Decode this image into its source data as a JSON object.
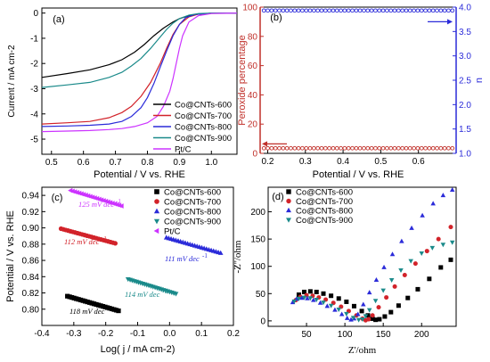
{
  "chart_data": [
    {
      "panel": "(a)",
      "type": "line",
      "xlabel": "Potential / V vs. RHE",
      "ylabel": "Current / mA cm-2",
      "xlim": [
        0.47,
        1.08
      ],
      "ylim": [
        -5.6,
        0.2
      ],
      "xticks": [
        0.5,
        0.6,
        0.7,
        0.8,
        0.9,
        1.0
      ],
      "yticks": [
        0,
        -1,
        -2,
        -3,
        -4,
        -5
      ],
      "legend_position": "bottom-right",
      "series": [
        {
          "name": "Co@CNTs-600",
          "color": "#000000",
          "x": [
            0.47,
            0.55,
            0.62,
            0.68,
            0.72,
            0.76,
            0.79,
            0.82,
            0.85,
            0.88,
            0.9,
            0.93,
            0.96,
            1.0,
            1.05,
            1.08
          ],
          "y": [
            -2.55,
            -2.4,
            -2.25,
            -2.05,
            -1.85,
            -1.55,
            -1.25,
            -0.9,
            -0.6,
            -0.35,
            -0.22,
            -0.1,
            -0.04,
            -0.01,
            0,
            0
          ]
        },
        {
          "name": "Co@CNTs-700",
          "color": "#d2232a",
          "x": [
            0.47,
            0.55,
            0.62,
            0.68,
            0.72,
            0.75,
            0.78,
            0.81,
            0.84,
            0.86,
            0.88,
            0.9,
            0.93,
            0.96,
            1.0,
            1.08
          ],
          "y": [
            -4.4,
            -4.35,
            -4.3,
            -4.15,
            -3.95,
            -3.7,
            -3.3,
            -2.75,
            -2.0,
            -1.4,
            -0.85,
            -0.45,
            -0.15,
            -0.04,
            -0.01,
            0
          ]
        },
        {
          "name": "Co@CNTs-800",
          "color": "#2b2bd9",
          "x": [
            0.47,
            0.55,
            0.62,
            0.68,
            0.72,
            0.75,
            0.78,
            0.8,
            0.82,
            0.84,
            0.86,
            0.88,
            0.9,
            0.92,
            0.95,
            1.0,
            1.08
          ],
          "y": [
            -4.5,
            -4.48,
            -4.45,
            -4.4,
            -4.3,
            -4.1,
            -3.75,
            -3.35,
            -2.8,
            -2.15,
            -1.5,
            -0.9,
            -0.45,
            -0.18,
            -0.05,
            -0.01,
            0
          ]
        },
        {
          "name": "Co@CNTs-900",
          "color": "#1a8a8a",
          "x": [
            0.47,
            0.55,
            0.62,
            0.68,
            0.72,
            0.75,
            0.78,
            0.81,
            0.84,
            0.86,
            0.88,
            0.9,
            0.93,
            0.96,
            1.0,
            1.08
          ],
          "y": [
            -2.95,
            -2.85,
            -2.75,
            -2.55,
            -2.35,
            -2.1,
            -1.8,
            -1.4,
            -0.95,
            -0.65,
            -0.4,
            -0.22,
            -0.08,
            -0.02,
            0,
            0
          ]
        },
        {
          "name": "Pt/C",
          "color": "#cc33ff",
          "x": [
            0.47,
            0.55,
            0.62,
            0.68,
            0.72,
            0.76,
            0.8,
            0.83,
            0.85,
            0.87,
            0.88,
            0.89,
            0.9,
            0.91,
            0.93,
            0.96,
            1.0,
            1.08
          ],
          "y": [
            -4.7,
            -4.68,
            -4.66,
            -4.62,
            -4.58,
            -4.5,
            -4.35,
            -4.1,
            -3.7,
            -3.1,
            -2.6,
            -2.0,
            -1.4,
            -0.9,
            -0.35,
            -0.1,
            -0.02,
            0
          ]
        }
      ]
    },
    {
      "panel": "(b)",
      "type": "line",
      "xlabel": "Potential / V vs. RHE",
      "ylabel": "Peroxide percentage",
      "y2label": "n",
      "xlim": [
        0.18,
        0.7
      ],
      "ylim": [
        0,
        100
      ],
      "y2lim": [
        1.0,
        4.0
      ],
      "xticks": [
        0.2,
        0.3,
        0.4,
        0.5,
        0.6
      ],
      "yticks": [
        0,
        20,
        40,
        60,
        80,
        100
      ],
      "y2ticks": [
        1.0,
        1.5,
        2.0,
        2.5,
        3.0,
        3.5,
        4.0
      ],
      "series": [
        {
          "name": "n",
          "axis": "right",
          "color": "#2b2bd9",
          "marker": "circle-open",
          "x_range": [
            0.19,
            0.69
          ],
          "points": 50,
          "value": 3.93
        },
        {
          "name": "Peroxide percentage",
          "axis": "left",
          "color": "#c0302a",
          "marker": "circle-open",
          "x_range": [
            0.19,
            0.69
          ],
          "points": 50,
          "value": 3.5
        }
      ]
    },
    {
      "panel": "(c)",
      "type": "scatter",
      "xlabel": "Log( j / mA cm-2)",
      "ylabel": "Potential / V vs. RHE",
      "xlim": [
        -0.4,
        0.2
      ],
      "ylim": [
        0.78,
        0.95
      ],
      "xticks": [
        -0.4,
        -0.3,
        -0.2,
        -0.1,
        0.0,
        0.1,
        0.2
      ],
      "yticks": [
        0.8,
        0.82,
        0.84,
        0.86,
        0.88,
        0.9,
        0.92,
        0.94
      ],
      "legend_position": "top-right",
      "series": [
        {
          "name": "Co@CNTs-600",
          "color": "#000000",
          "marker": "square",
          "x_range": [
            -0.32,
            -0.16
          ],
          "y_range": [
            0.816,
            0.798
          ],
          "points": 24,
          "annotation": "118 mV dec",
          "annotation_sup": "-1"
        },
        {
          "name": "Co@CNTs-700",
          "color": "#d2232a",
          "marker": "circle",
          "x_range": [
            -0.34,
            -0.17
          ],
          "y_range": [
            0.899,
            0.881
          ],
          "points": 24,
          "annotation": "112 mV dec",
          "annotation_sup": "-1"
        },
        {
          "name": "Co@CNTs-800",
          "color": "#2b2bd9",
          "marker": "triangle-up",
          "x_range": [
            -0.01,
            0.16
          ],
          "y_range": [
            0.888,
            0.869
          ],
          "points": 24,
          "annotation": "111 mV dec",
          "annotation_sup": "-1"
        },
        {
          "name": "Co@CNTs-900",
          "color": "#1a8a8a",
          "marker": "triangle-down",
          "x_range": [
            -0.13,
            0.02
          ],
          "y_range": [
            0.837,
            0.819
          ],
          "points": 24,
          "annotation": "114 mV dec",
          "annotation_sup": "-1"
        },
        {
          "name": "Pt/C",
          "color": "#cc33ff",
          "marker": "triangle-left",
          "x_range": [
            -0.31,
            -0.15
          ],
          "y_range": [
            0.946,
            0.927
          ],
          "points": 24,
          "annotation": "125 mV dec",
          "annotation_sup": "-1"
        }
      ]
    },
    {
      "panel": "(d)",
      "type": "scatter",
      "xlabel": "Z'/ohm",
      "ylabel": "-Z''/ohm",
      "xlim": [
        0,
        245
      ],
      "ylim": [
        -10,
        245
      ],
      "xticks": [
        50,
        100,
        150,
        200
      ],
      "yticks": [
        0,
        50,
        100,
        150,
        200
      ],
      "legend_position": "top-left",
      "series": [
        {
          "name": "Co@CNTs-600",
          "color": "#000000",
          "marker": "square",
          "x": [
            40,
            47,
            55,
            63,
            72,
            82,
            92,
            102,
            112,
            122,
            130,
            136,
            140,
            145,
            152,
            160,
            170,
            182,
            195,
            210,
            225,
            238
          ],
          "y": [
            48,
            53,
            54,
            53,
            50,
            46,
            41,
            35,
            27,
            18,
            10,
            4,
            2,
            3,
            8,
            16,
            28,
            42,
            58,
            77,
            98,
            112
          ]
        },
        {
          "name": "Co@CNTs-700",
          "color": "#d2232a",
          "marker": "circle",
          "x": [
            36,
            42,
            50,
            58,
            66,
            75,
            85,
            95,
            105,
            115,
            123,
            127,
            131,
            136,
            144,
            154,
            165,
            178,
            192,
            207,
            222,
            238
          ],
          "y": [
            38,
            44,
            47,
            46,
            43,
            39,
            33,
            26,
            18,
            10,
            4,
            1,
            3,
            10,
            25,
            43,
            63,
            84,
            105,
            128,
            150,
            172
          ]
        },
        {
          "name": "Co@CNTs-800",
          "color": "#2b2bd9",
          "marker": "triangle-up",
          "x": [
            32,
            37,
            44,
            51,
            59,
            68,
            77,
            87,
            96,
            103,
            108,
            112,
            117,
            124,
            132,
            141,
            151,
            162,
            174,
            187,
            201,
            215,
            228,
            240
          ],
          "y": [
            34,
            40,
            42,
            41,
            38,
            33,
            27,
            20,
            12,
            5,
            2,
            4,
            12,
            30,
            52,
            75,
            98,
            122,
            146,
            170,
            193,
            215,
            230,
            240
          ]
        },
        {
          "name": "Co@CNTs-900",
          "color": "#1a8a8a",
          "marker": "triangle-down",
          "x": [
            34,
            40,
            47,
            55,
            63,
            72,
            82,
            92,
            102,
            111,
            118,
            123,
            127,
            132,
            140,
            150,
            161,
            173,
            186,
            200,
            214,
            228,
            240
          ],
          "y": [
            36,
            41,
            43,
            42,
            39,
            34,
            28,
            21,
            13,
            6,
            2,
            3,
            9,
            20,
            37,
            56,
            75,
            93,
            110,
            124,
            134,
            140,
            144
          ]
        }
      ]
    }
  ]
}
